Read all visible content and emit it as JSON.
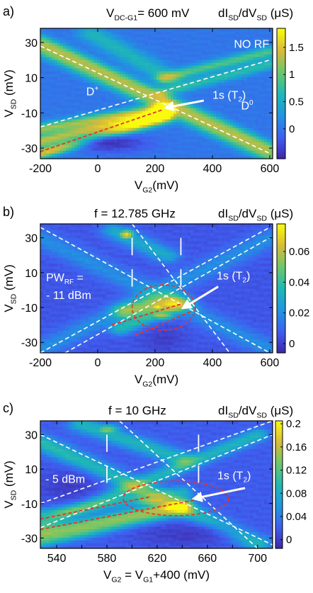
{
  "chart_data": [
    {
      "type": "heatmap",
      "panel_label": "a)",
      "title_parts": {
        "v": "V",
        "sub": "DC-G1",
        "rest": "= 600 mV"
      },
      "cbar_label": {
        "a": "dI",
        "a_sub": "SD",
        "b": "/dV",
        "b_sub": "SD",
        "unit": " (μS)"
      },
      "xlabel": {
        "v": "V",
        "sub": "G2",
        "rest": "(mV)"
      },
      "ylabel": {
        "v": "V",
        "sub": "SD",
        "rest": " (mV)"
      },
      "xlim": [
        -200,
        610
      ],
      "ylim": [
        -36,
        38
      ],
      "xticks": [
        -200,
        0,
        200,
        400,
        600
      ],
      "yticks": [
        30,
        10,
        -10,
        -30
      ],
      "clim": [
        -0.55,
        1.85
      ],
      "cticks": [
        1.5,
        1,
        0.5,
        0
      ],
      "colormap": [
        "#3e26a8",
        "#3f5ef0",
        "#1f96e0",
        "#1fb8b4",
        "#6cc76c",
        "#d8ba3a",
        "#f9fb0e"
      ],
      "background_level": 0.02,
      "features": [
        {
          "x0": -200,
          "y0": 27,
          "x1": 600,
          "y1": -34,
          "w": 2.5,
          "v": 1.1
        },
        {
          "x0": -200,
          "y0": 32,
          "x1": 600,
          "y1": -29,
          "w": 2.0,
          "v": 0.8
        },
        {
          "x0": -200,
          "y0": -19,
          "x1": 230,
          "y1": -7,
          "w": 2.2,
          "v": 1.2
        },
        {
          "x0": -200,
          "y0": -26,
          "x1": 230,
          "y1": -10,
          "w": 2.2,
          "v": 1.4
        },
        {
          "x0": -200,
          "y0": -33,
          "x1": 230,
          "y1": -13,
          "w": 2.0,
          "v": 1.5
        },
        {
          "x0": 230,
          "y0": 10,
          "x1": 600,
          "y1": 25,
          "w": 2.0,
          "v": 0.9
        },
        {
          "x0": 230,
          "y0": 2,
          "x1": 600,
          "y1": 18,
          "w": 2.0,
          "v": 0.7
        },
        {
          "x0": -20,
          "y0": 35,
          "x1": 250,
          "y1": 10,
          "w": 3.0,
          "v": 0.6
        }
      ],
      "dark_regions": [
        {
          "x": 50,
          "y": -27,
          "rx": 120,
          "ry": 5,
          "v": -0.45
        }
      ],
      "white_lines": [
        {
          "x0": -200,
          "y0": 28,
          "x1": 600,
          "y1": -33
        },
        {
          "x0": -200,
          "y0": -18,
          "x1": 600,
          "y1": 20
        }
      ],
      "red_lines": [
        {
          "x0": -200,
          "y0": -32,
          "x1": 230,
          "y1": -8
        }
      ],
      "arrow": {
        "from": [
          370,
          -3
        ],
        "to": [
          240,
          -7
        ]
      },
      "text_labels": [
        {
          "text": "NO RF",
          "x": 475,
          "y": 27,
          "sub": ""
        },
        {
          "text": "1s (T",
          "x": 400,
          "y": -2,
          "sub": "2",
          "after": ")"
        },
        {
          "text": "D",
          "x": -40,
          "y": 0,
          "sup": "+"
        },
        {
          "text": "D",
          "x": 500,
          "y": -8,
          "sup": "0"
        }
      ]
    },
    {
      "type": "heatmap",
      "panel_label": "b)",
      "title": "f = 12.785 GHz",
      "cbar_label": {
        "a": "dI",
        "a_sub": "SD",
        "b": "/dV",
        "b_sub": "SD",
        "unit": " (μS)"
      },
      "xlabel": {
        "v": "V",
        "sub": "G2",
        "rest": "(mV)"
      },
      "ylabel": {
        "v": "V",
        "sub": "SD",
        "rest": " (mV)"
      },
      "xlim": [
        -200,
        610
      ],
      "ylim": [
        -36,
        38
      ],
      "xticks": [
        -200,
        0,
        200,
        400,
        600
      ],
      "yticks": [
        30,
        10,
        -10,
        -30
      ],
      "clim": [
        -0.006,
        0.078
      ],
      "cticks": [
        0.06,
        0.04,
        0.02,
        0
      ],
      "colormap": [
        "#3e26a8",
        "#3f5ef0",
        "#1f96e0",
        "#1fb8b4",
        "#6cc76c",
        "#d8ba3a",
        "#f9fb0e"
      ],
      "background_level": 0.006,
      "features": [
        {
          "x0": -200,
          "y0": 30,
          "x1": 600,
          "y1": -34,
          "w": 3.5,
          "v": 0.02
        },
        {
          "x0": -200,
          "y0": -34,
          "x1": 600,
          "y1": 30,
          "w": 3.5,
          "v": 0.02
        },
        {
          "x0": 100,
          "y0": -12,
          "x1": 260,
          "y1": -6,
          "w": 3.0,
          "v": 0.045
        },
        {
          "x0": 80,
          "y0": -22,
          "x1": 300,
          "y1": -8,
          "w": 2.5,
          "v": 0.035
        },
        {
          "x0": 60,
          "y0": 34,
          "x1": 240,
          "y1": 20,
          "w": 3.0,
          "v": 0.03
        }
      ],
      "dark_regions": [
        {
          "x": 230,
          "y": -28,
          "rx": 70,
          "ry": 7,
          "v": 0.0
        }
      ],
      "hot_spots": [
        {
          "x": 210,
          "y": -9,
          "rx": 40,
          "ry": 3,
          "v": 0.075
        },
        {
          "x": 100,
          "y": 32,
          "rx": 30,
          "ry": 3,
          "v": 0.07
        },
        {
          "x": 220,
          "y": -14,
          "rx": 50,
          "ry": 3,
          "v": 0.06
        }
      ],
      "white_lines": [
        {
          "x0": -200,
          "y0": 36,
          "x1": 600,
          "y1": -36
        },
        {
          "x0": -200,
          "y0": -36,
          "x1": 600,
          "y1": 36
        },
        {
          "x0": -200,
          "y0": -44,
          "x1": 600,
          "y1": 30
        },
        {
          "x0": 120,
          "y0": 38,
          "x1": 460,
          "y1": -36
        }
      ],
      "white_ticks": [
        {
          "x": 120,
          "y0": 30,
          "y1": 20
        },
        {
          "x": 120,
          "y0": 12,
          "y1": 2
        },
        {
          "x": 290,
          "y0": 30,
          "y1": 20
        },
        {
          "x": 290,
          "y0": 12,
          "y1": 2
        }
      ],
      "red_lines": [
        {
          "x0": 50,
          "y0": -20,
          "x1": 290,
          "y1": -8
        },
        {
          "x0": 130,
          "y0": -26,
          "x1": 330,
          "y1": -12
        }
      ],
      "red_ellipse": {
        "cx": 230,
        "cy": -10,
        "rx": 110,
        "ry": 13
      },
      "arrow": {
        "from": [
          420,
          2
        ],
        "to": [
          300,
          -10
        ]
      },
      "text_labels": [
        {
          "text": "PW",
          "x": -180,
          "y": 5,
          "sub": "RF",
          "after": " ="
        },
        {
          "text": "- 11 dBm",
          "x": -180,
          "y": -5
        },
        {
          "text": "1s (T",
          "x": 415,
          "y": 6,
          "sub": "2",
          "after": ")"
        }
      ]
    },
    {
      "type": "heatmap",
      "panel_label": "c)",
      "title": "f = 10 GHz",
      "cbar_label": {
        "a": "dI",
        "a_sub": "SD",
        "b": "/dV",
        "b_sub": "SD",
        "unit": " (μS)"
      },
      "xlabel": {
        "v": "V",
        "sub": "G2",
        "rest": " = V",
        "sub2": "G1",
        "rest2": "+400 (mV)"
      },
      "ylabel": {
        "v": "V",
        "sub": "SD",
        "rest": " (mV)"
      },
      "xlim": [
        527,
        712
      ],
      "ylim": [
        -36,
        38
      ],
      "xticks": [
        540,
        580,
        620,
        660,
        700
      ],
      "xtick_labels": [
        "540",
        "",
        "580",
        "",
        "620",
        "",
        "660",
        "",
        "700"
      ],
      "xtick_values": [
        540,
        560,
        580,
        600,
        620,
        640,
        660,
        680,
        700
      ],
      "yticks": [
        30,
        10,
        -10,
        -30
      ],
      "clim": [
        -0.015,
        0.205
      ],
      "cticks": [
        0.2,
        0.16,
        0.12,
        0.08,
        0.04,
        0
      ],
      "colormap": [
        "#3e26a8",
        "#3f5ef0",
        "#1f96e0",
        "#1fb8b4",
        "#6cc76c",
        "#d8ba3a",
        "#f9fb0e"
      ],
      "background_level": 0.02,
      "features": [
        {
          "x0": 527,
          "y0": 26,
          "x1": 700,
          "y1": -33,
          "w": 3.0,
          "v": 0.1
        },
        {
          "x0": 527,
          "y0": -22,
          "x1": 700,
          "y1": 30,
          "w": 2.5,
          "v": 0.09
        },
        {
          "x0": 527,
          "y0": -27,
          "x1": 640,
          "y1": -10,
          "w": 2.5,
          "v": 0.12
        },
        {
          "x0": 527,
          "y0": -32,
          "x1": 640,
          "y1": -14,
          "w": 2.5,
          "v": 0.1
        },
        {
          "x0": 527,
          "y0": -16,
          "x1": 640,
          "y1": -3,
          "w": 2.5,
          "v": 0.08
        },
        {
          "x0": 560,
          "y0": 36,
          "x1": 640,
          "y1": 16,
          "w": 3.0,
          "v": 0.09
        }
      ],
      "dark_regions": [
        {
          "x": 640,
          "y": -28,
          "rx": 40,
          "ry": 7,
          "v": 0.0
        },
        {
          "x": 548,
          "y": 0,
          "rx": 25,
          "ry": 9,
          "v": 0.0
        }
      ],
      "hot_spots": [
        {
          "x": 620,
          "y": -8,
          "rx": 20,
          "ry": 4,
          "v": 0.17
        },
        {
          "x": 580,
          "y": 33,
          "rx": 10,
          "ry": 3,
          "v": 0.14
        }
      ],
      "white_lines": [
        {
          "x0": 527,
          "y0": 30,
          "x1": 712,
          "y1": -34
        },
        {
          "x0": 527,
          "y0": -10,
          "x1": 712,
          "y1": 38
        },
        {
          "x0": 527,
          "y0": -24,
          "x1": 712,
          "y1": 30
        },
        {
          "x0": 590,
          "y0": 38,
          "x1": 700,
          "y1": -36
        }
      ],
      "white_ticks": [
        {
          "x": 580,
          "y0": 30,
          "y1": 20
        },
        {
          "x": 580,
          "y0": 12,
          "y1": 2
        },
        {
          "x": 653,
          "y0": 30,
          "y1": 20
        },
        {
          "x": 653,
          "y0": 12,
          "y1": 2
        }
      ],
      "red_lines": [
        {
          "x0": 527,
          "y0": -25,
          "x1": 650,
          "y1": -8
        },
        {
          "x0": 527,
          "y0": -19,
          "x1": 615,
          "y1": -6
        }
      ],
      "red_ellipse": {
        "cx": 635,
        "cy": -7,
        "rx": 42,
        "ry": 10
      },
      "arrow": {
        "from": [
          690,
          -1
        ],
        "to": [
          650,
          -7
        ]
      },
      "text_labels": [
        {
          "text": "- 5 dBm",
          "x": 531,
          "y": 2
        },
        {
          "text": "1s (T",
          "x": 668,
          "y": 4,
          "sub": "2",
          "after": ")"
        }
      ]
    }
  ]
}
